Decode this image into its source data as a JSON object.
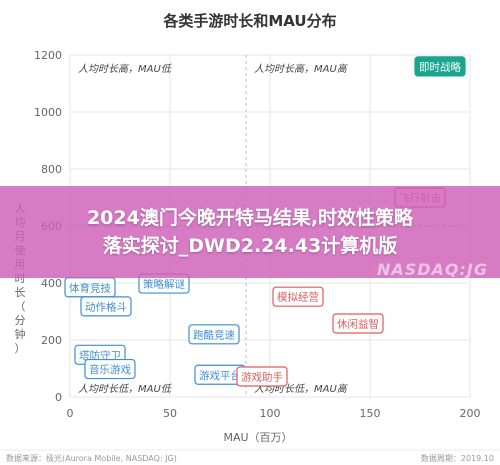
{
  "chart_data": {
    "type": "scatter",
    "title": "各类手游时长和MAU分布",
    "xlabel": "MAU（百万）",
    "ylabel_chars": [
      "人",
      "均",
      "月",
      "使",
      "用",
      "时",
      "长",
      "（",
      "分",
      "钟",
      "）"
    ],
    "xlim": [
      0,
      200
    ],
    "ylim": [
      0,
      1200
    ],
    "xticks": [
      0,
      50,
      100,
      150,
      200
    ],
    "yticks": [
      0,
      200,
      400,
      600,
      800,
      1000,
      1200
    ],
    "midlines": {
      "x": 88,
      "y": 600
    },
    "grid": true,
    "quadrant_labels": [
      {
        "text": "人均时长高，MAU低",
        "pos": "top-left"
      },
      {
        "text": "人均时长高，MAU高",
        "pos": "top-right"
      },
      {
        "text": "人均时长低，MAU低",
        "pos": "bottom-left"
      },
      {
        "text": "人均时长低，MAU高",
        "pos": "bottom-right"
      }
    ],
    "categories": [
      {
        "name": "即时战略",
        "x": 185,
        "y": 1160,
        "color": "#1aa58e"
      },
      {
        "name": "飞行射击",
        "x": 175,
        "y": 700,
        "color": "#e05b5b"
      },
      {
        "name": "体育竞技",
        "x": 10,
        "y": 385,
        "color": "#3d8ed6"
      },
      {
        "name": "策略解谜",
        "x": 47,
        "y": 398,
        "color": "#3d8ed6"
      },
      {
        "name": "动作格斗",
        "x": 18,
        "y": 318,
        "color": "#3d8ed6"
      },
      {
        "name": "跑酷竞速",
        "x": 72,
        "y": 220,
        "color": "#3d8ed6"
      },
      {
        "name": "塔防守卫",
        "x": 15,
        "y": 148,
        "color": "#3d8ed6"
      },
      {
        "name": "音乐游戏",
        "x": 20,
        "y": 98,
        "color": "#3d8ed6"
      },
      {
        "name": "游戏平台",
        "x": 75,
        "y": 78,
        "color": "#3d8ed6"
      },
      {
        "name": "游戏助手",
        "x": 96,
        "y": 72,
        "color": "#e05b5b"
      },
      {
        "name": "模拟经营",
        "x": 114,
        "y": 352,
        "color": "#e05b5b"
      },
      {
        "name": "休闲益智",
        "x": 144,
        "y": 258,
        "color": "#e05b5b"
      }
    ]
  },
  "footer": {
    "source": "数据来源：极光(Aurora Mobile, NASDAQ: JG)",
    "date": "数据周期：2019.10"
  },
  "overlay": {
    "line1": "2024澳门今晚开特马结果,时效性策略",
    "line2": "落实探讨_DWD2.24.43计算机版",
    "watermark": "NASDAQ:JG"
  }
}
